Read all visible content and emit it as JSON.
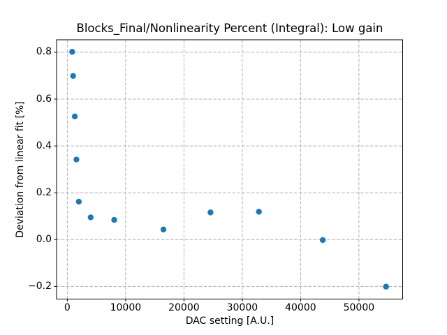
{
  "chart_data": {
    "type": "scatter",
    "title": "Blocks_Final/Nonlinearity Percent (Integral): Low gain",
    "xlabel": "DAC setting [A.U.]",
    "ylabel": "Deviation from linear fit [%]",
    "points": [
      {
        "x": 830,
        "y": 0.802
      },
      {
        "x": 990,
        "y": 0.699
      },
      {
        "x": 1280,
        "y": 0.526
      },
      {
        "x": 1560,
        "y": 0.342
      },
      {
        "x": 1970,
        "y": 0.162
      },
      {
        "x": 4000,
        "y": 0.095
      },
      {
        "x": 8040,
        "y": 0.084
      },
      {
        "x": 16480,
        "y": 0.043
      },
      {
        "x": 24550,
        "y": 0.116
      },
      {
        "x": 32850,
        "y": 0.119
      },
      {
        "x": 43800,
        "y": -0.002
      },
      {
        "x": 54650,
        "y": -0.201
      }
    ],
    "xlim": [
      -1844,
      57497
    ],
    "ylim": [
      -0.254,
      0.8534
    ],
    "xticks": {
      "values": [
        0,
        10000,
        20000,
        30000,
        40000,
        50000
      ],
      "labels": [
        "0",
        "10000",
        "20000",
        "30000",
        "40000",
        "50000"
      ]
    },
    "yticks": {
      "values": [
        -0.2,
        0.0,
        0.2,
        0.4,
        0.6,
        0.8
      ],
      "labels": [
        "−0.2",
        "0.0",
        "0.2",
        "0.4",
        "0.6",
        "0.8"
      ]
    },
    "grid": true,
    "grid_style": "dashed",
    "legend_position": "none",
    "marker_color": "#1f77b4",
    "grid_color": "#b0b0b0",
    "spine_color": "#000000",
    "background_color": "#ffffff"
  }
}
